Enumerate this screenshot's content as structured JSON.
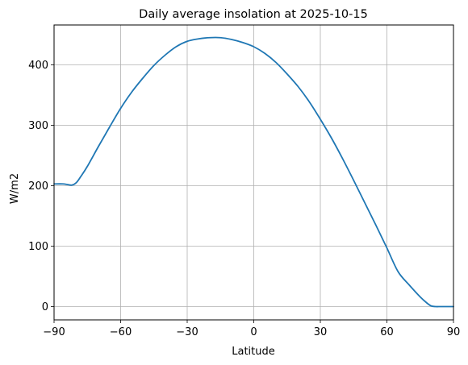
{
  "chart_data": {
    "type": "line",
    "title": "Daily average insolation at 2025-10-15",
    "xlabel": "Latitude",
    "ylabel": "W/m2",
    "xlim": [
      -90,
      90
    ],
    "ylim": [
      -22,
      466
    ],
    "xticks": [
      -90,
      -60,
      -30,
      0,
      30,
      60,
      90
    ],
    "yticks": [
      0,
      100,
      200,
      300,
      400
    ],
    "grid": true,
    "line_color": "#1f77b4",
    "grid_color": "#b0b0b0",
    "series": [
      {
        "x": [
          -90,
          -86,
          -84,
          -82,
          -80,
          -78,
          -75,
          -70,
          -65,
          -60,
          -55,
          -50,
          -45,
          -40,
          -35,
          -30,
          -25,
          -20,
          -15,
          -10,
          -5,
          0,
          5,
          10,
          15,
          20,
          25,
          30,
          35,
          40,
          45,
          50,
          55,
          60,
          65,
          70,
          75,
          78,
          80,
          82,
          84,
          86,
          90
        ],
        "y": [
          203,
          203,
          202,
          201,
          205,
          215,
          232,
          265,
          297,
          328,
          355,
          378,
          399,
          416,
          430,
          439,
          443,
          445,
          445,
          442,
          437,
          430,
          419,
          404,
          385,
          364,
          339,
          310,
          279,
          245,
          209,
          172,
          135,
          97,
          58,
          36,
          16,
          6,
          1,
          0,
          0,
          0,
          0
        ]
      }
    ]
  }
}
